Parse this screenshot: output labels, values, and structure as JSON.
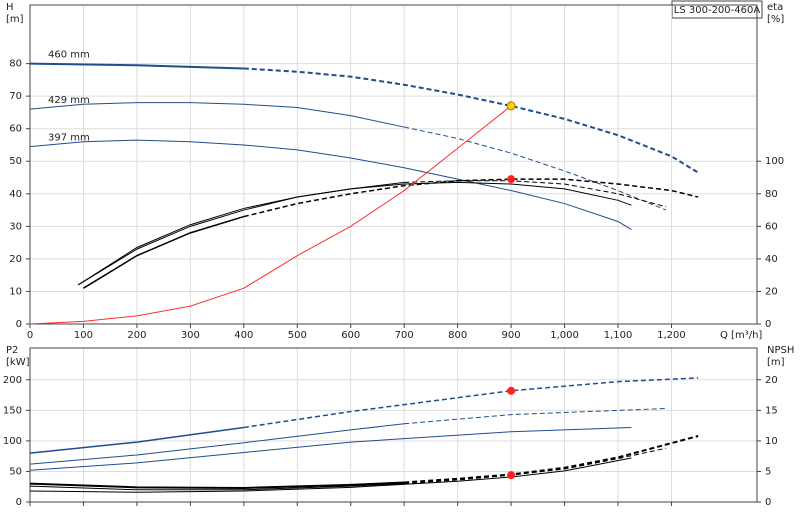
{
  "chart_data": [
    {
      "type": "line",
      "title": "LS 300-200-460A",
      "ylabel": [
        "H",
        "[m]"
      ],
      "y2label": [
        "eta",
        "[%]"
      ],
      "xlabel": "Q [m³/h]",
      "xlim": [
        0,
        1360
      ],
      "ylim": [
        0,
        98
      ],
      "y2lim": [
        0,
        196
      ],
      "grid": true,
      "xticks": [
        0,
        100,
        200,
        300,
        400,
        500,
        600,
        700,
        800,
        900,
        {
          "value": 1000,
          "label": "1,000"
        },
        {
          "value": 1100,
          "label": "1,100"
        },
        {
          "value": 1200,
          "label": "1,200"
        }
      ],
      "yticks": [
        0,
        10,
        20,
        30,
        40,
        50,
        60,
        70,
        80
      ],
      "y2ticks": [
        0,
        20,
        40,
        60,
        80,
        100
      ],
      "series": [
        {
          "name": "460 mm",
          "color": "#1f4e8c",
          "width": 2,
          "dashed_from": 400,
          "x": [
            0,
            200,
            400,
            500,
            600,
            700,
            800,
            900,
            1000,
            1100,
            1200,
            1250
          ],
          "values": [
            80,
            79.5,
            78.5,
            77.5,
            76,
            73.5,
            70.5,
            67,
            63,
            58,
            51.5,
            46.5
          ]
        },
        {
          "name": "429 mm",
          "color": "#1f4e8c",
          "width": 1,
          "dashed_from": 700,
          "x": [
            0,
            100,
            200,
            300,
            400,
            500,
            600,
            700,
            800,
            900,
            1000,
            1100,
            1190
          ],
          "values": [
            66,
            67.5,
            68,
            68,
            67.5,
            66.5,
            64,
            60.5,
            57,
            52.5,
            47,
            41,
            35
          ]
        },
        {
          "name": "397 mm",
          "color": "#1f4e8c",
          "width": 1,
          "x": [
            0,
            100,
            200,
            300,
            400,
            500,
            600,
            700,
            800,
            900,
            1000,
            1100,
            1125
          ],
          "values": [
            54.5,
            56,
            56.5,
            56,
            55,
            53.5,
            51,
            48,
            44.5,
            41,
            37,
            31.5,
            29
          ]
        },
        {
          "color": "#000000",
          "width": 1.5,
          "axis": "y2",
          "dashed_from": 400,
          "x": [
            100,
            200,
            300,
            400,
            500,
            600,
            700,
            800,
            900,
            1000,
            1100,
            1200,
            1250
          ],
          "values": [
            22,
            42,
            56,
            66,
            74,
            80,
            85,
            88,
            89,
            89,
            86,
            82,
            78
          ]
        },
        {
          "color": "#000000",
          "width": 1,
          "axis": "y2",
          "dashed_from": 700,
          "x": [
            90,
            200,
            300,
            400,
            500,
            600,
            700,
            800,
            900,
            1000,
            1100,
            1190
          ],
          "values": [
            24,
            46,
            60,
            70,
            78,
            83,
            87,
            88,
            88,
            86,
            80,
            72
          ]
        },
        {
          "color": "#000000",
          "width": 1,
          "axis": "y2",
          "x": [
            90,
            200,
            300,
            400,
            500,
            600,
            700,
            800,
            900,
            1000,
            1100,
            1125
          ],
          "values": [
            24,
            47,
            61,
            71,
            78,
            83,
            86,
            87,
            86,
            83,
            76,
            73
          ]
        },
        {
          "color": "#ff3030",
          "width": 1,
          "x": [
            0,
            100,
            200,
            300,
            400,
            500,
            600,
            700,
            800,
            900
          ],
          "values": [
            0,
            0.8,
            2.5,
            5.5,
            11,
            21,
            30,
            41,
            54,
            67
          ]
        }
      ],
      "points": [
        {
          "x": 900,
          "y": 67,
          "color": "#ffd000"
        },
        {
          "x": 900,
          "y": 89,
          "axis": "y2",
          "color": "#ff2020"
        }
      ]
    },
    {
      "type": "line",
      "ylabel": [
        "P2",
        "[kW]"
      ],
      "y2label": [
        "NPSH",
        "[m]"
      ],
      "xlim": [
        0,
        1360
      ],
      "ylim": [
        0,
        252
      ],
      "y2lim": [
        0,
        25.2
      ],
      "grid": true,
      "xticks": [
        0,
        100,
        200,
        300,
        400,
        500,
        600,
        700,
        800,
        900,
        1000,
        1100,
        1200
      ],
      "yticks": [
        0,
        50,
        100,
        150,
        200
      ],
      "y2ticks": [
        0,
        5,
        10,
        15,
        20
      ],
      "series": [
        {
          "color": "#1f4e8c",
          "width": 1.5,
          "dashed_from": 400,
          "x": [
            0,
            200,
            400,
            600,
            900,
            1100,
            1250
          ],
          "values": [
            80,
            98,
            122,
            148,
            182,
            197,
            203
          ]
        },
        {
          "color": "#1f4e8c",
          "width": 1,
          "dashed_from": 700,
          "x": [
            0,
            200,
            400,
            600,
            700,
            900,
            1190
          ],
          "values": [
            62,
            77,
            97,
            118,
            128,
            143,
            153
          ]
        },
        {
          "color": "#1f4e8c",
          "width": 1,
          "x": [
            0,
            200,
            400,
            600,
            900,
            1125
          ],
          "values": [
            52,
            64,
            81,
            98,
            115,
            122
          ]
        },
        {
          "color": "#000000",
          "width": 2,
          "axis": "y2",
          "dashed_from": 700,
          "x": [
            0,
            200,
            400,
            600,
            700,
            800,
            900,
            1000,
            1100,
            1250
          ],
          "values": [
            3,
            2.4,
            2.3,
            2.8,
            3.2,
            3.8,
            4.5,
            5.6,
            7.3,
            10.8
          ]
        },
        {
          "color": "#000000",
          "width": 1,
          "axis": "y2",
          "dashed_from": 700,
          "x": [
            0,
            200,
            400,
            600,
            700,
            800,
            900,
            1000,
            1100,
            1190
          ],
          "values": [
            2.6,
            2,
            2,
            2.6,
            3,
            3.6,
            4.4,
            5.4,
            7.1,
            8.8
          ]
        },
        {
          "color": "#000000",
          "width": 1,
          "axis": "y2",
          "x": [
            0,
            200,
            400,
            600,
            800,
            900,
            1000,
            1125
          ],
          "values": [
            1.8,
            1.6,
            1.8,
            2.4,
            3.4,
            4.1,
            5.1,
            7.2
          ]
        }
      ],
      "points": [
        {
          "x": 900,
          "y": 182,
          "color": "#ff2020"
        },
        {
          "x": 900,
          "y": 4.4,
          "axis": "y2",
          "color": "#ff2020"
        }
      ]
    }
  ]
}
